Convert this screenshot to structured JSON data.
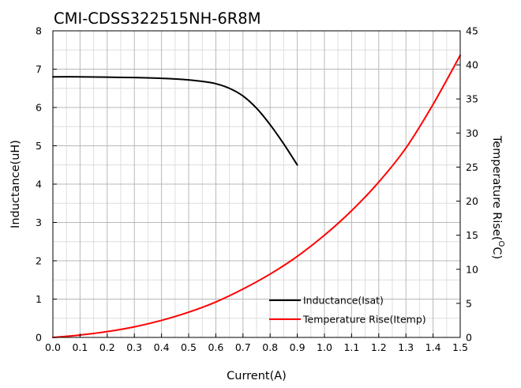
{
  "chart_data": {
    "type": "line",
    "title": "CMI-CDSS322515NH-6R8M",
    "xlabel": "Current(A)",
    "ylabel": "Inductance(uH)",
    "y2label_main": "Temperature Rise(",
    "y2label_sup": "O",
    "y2label_end": "C)",
    "xlim": [
      0,
      1.5
    ],
    "ylim": [
      0,
      8
    ],
    "y2lim": [
      0,
      45
    ],
    "x_ticks": [
      "0.0",
      "0.1",
      "0.2",
      "0.3",
      "0.4",
      "0.5",
      "0.6",
      "0.7",
      "0.8",
      "0.9",
      "1.0",
      "1.1",
      "1.2",
      "1.3",
      "1.4",
      "1.5"
    ],
    "y_ticks": [
      "0",
      "1",
      "2",
      "3",
      "4",
      "5",
      "6",
      "7",
      "8"
    ],
    "y2_ticks": [
      "0",
      "5",
      "10",
      "15",
      "20",
      "25",
      "30",
      "35",
      "40",
      "45"
    ],
    "grid": true,
    "legend_position": "bottom-right",
    "series": [
      {
        "name": "Inductance(Isat)",
        "axis": "left",
        "color": "#000000",
        "x": [
          0,
          0.1,
          0.2,
          0.3,
          0.4,
          0.5,
          0.55,
          0.6,
          0.65,
          0.7,
          0.75,
          0.8,
          0.85,
          0.9
        ],
        "y": [
          6.8,
          6.8,
          6.79,
          6.78,
          6.76,
          6.72,
          6.68,
          6.62,
          6.5,
          6.3,
          5.98,
          5.55,
          5.05,
          4.5
        ]
      },
      {
        "name": "Temperature Rise(Itemp)",
        "axis": "right",
        "color": "#ff0000",
        "x": [
          0,
          0.1,
          0.2,
          0.3,
          0.4,
          0.5,
          0.6,
          0.7,
          0.8,
          0.9,
          1.0,
          1.1,
          1.2,
          1.3,
          1.4,
          1.5
        ],
        "y": [
          0,
          0.35,
          0.85,
          1.55,
          2.5,
          3.7,
          5.2,
          7.1,
          9.3,
          11.9,
          15.0,
          18.6,
          22.8,
          27.8,
          34.2,
          41.4
        ]
      }
    ]
  }
}
